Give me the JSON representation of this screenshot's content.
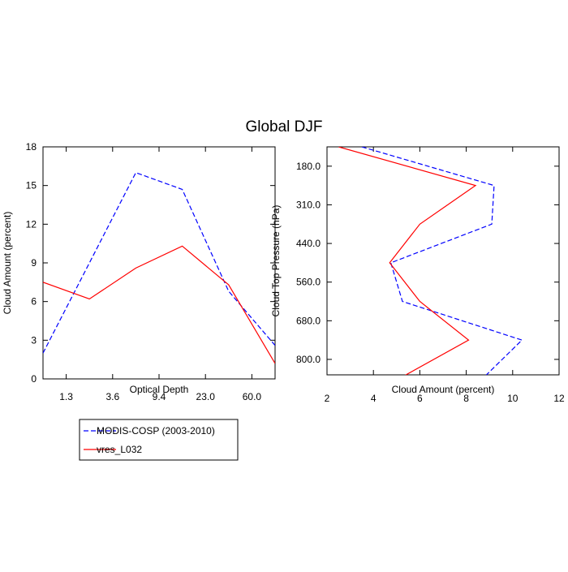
{
  "chart_data": [
    {
      "type": "line",
      "title": "Global DJF",
      "xlabel": "Optical Depth",
      "ylabel": "Cloud Amount (percent)",
      "x": [
        0,
        1,
        2,
        3,
        4,
        5
      ],
      "xlim": [
        0,
        5
      ],
      "xticks": [
        {
          "value": 0.5,
          "label": "1.3"
        },
        {
          "value": 1.5,
          "label": "3.6"
        },
        {
          "value": 2.5,
          "label": "9.4"
        },
        {
          "value": 3.5,
          "label": "23.0"
        },
        {
          "value": 4.5,
          "label": "60.0"
        }
      ],
      "ylim": [
        0,
        18
      ],
      "yticks": [
        0,
        3,
        6,
        9,
        12,
        15,
        18
      ],
      "series": [
        {
          "name": "MODIS-COSP (2003-2010)",
          "color": "#0000ff",
          "dash": true,
          "values": [
            2.0,
            9.0,
            16.0,
            14.7,
            6.8,
            2.6
          ]
        },
        {
          "name": "vres_L032",
          "color": "#ff0000",
          "dash": false,
          "values": [
            7.5,
            6.2,
            8.6,
            10.3,
            7.3,
            1.2
          ]
        }
      ]
    },
    {
      "type": "line",
      "orientation": "horizontal",
      "xlabel": "Cloud Amount (percent)",
      "ylabel": "Cloud Top Pressure (hPa)",
      "y": [
        0,
        1,
        2,
        3,
        4,
        5,
        6
      ],
      "ylim": [
        5.9,
        0
      ],
      "yticks": [
        {
          "value": 0.5,
          "label": "180.0"
        },
        {
          "value": 1.5,
          "label": "310.0"
        },
        {
          "value": 2.5,
          "label": "440.0"
        },
        {
          "value": 3.5,
          "label": "560.0"
        },
        {
          "value": 4.5,
          "label": "680.0"
        },
        {
          "value": 5.5,
          "label": "800.0"
        }
      ],
      "xlim": [
        2,
        12
      ],
      "xticks": [
        2,
        4,
        6,
        8,
        10,
        12
      ],
      "series": [
        {
          "color": "#0000ff",
          "dash": true,
          "values": [
            3.5,
            9.2,
            9.1,
            4.75,
            5.25,
            10.4,
            8.7
          ]
        },
        {
          "color": "#ff0000",
          "dash": false,
          "values": [
            2.5,
            8.4,
            6.0,
            4.7,
            6.0,
            8.1,
            5.1
          ]
        }
      ]
    }
  ]
}
